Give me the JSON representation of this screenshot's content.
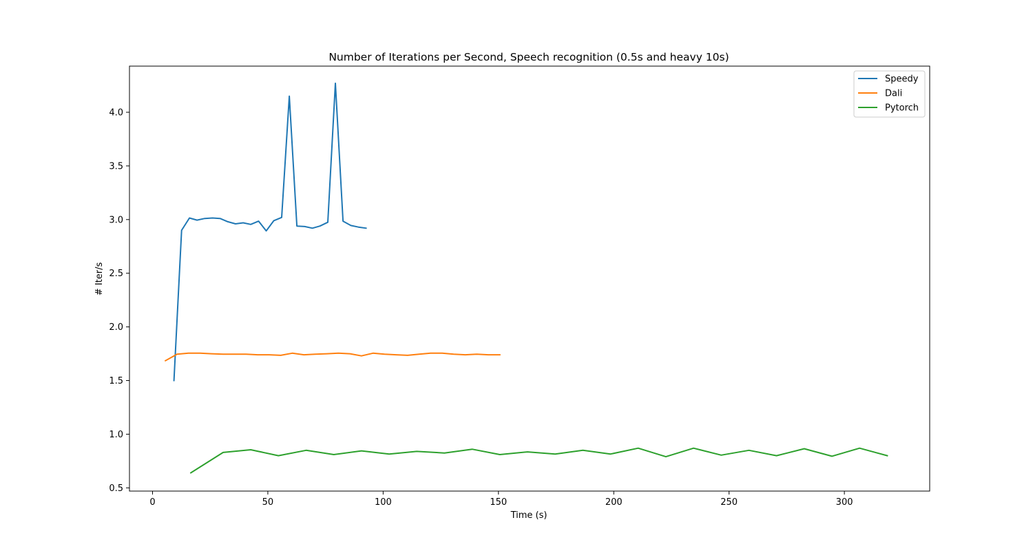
{
  "chart_data": {
    "type": "line",
    "title": "Number of Iterations per Second, Speech recognition (0.5s and heavy 10s)",
    "xlabel": "Time (s)",
    "ylabel": "# Iter/s",
    "xlim": [
      -10,
      337
    ],
    "ylim": [
      0.47,
      4.43
    ],
    "xticks": [
      0,
      50,
      100,
      150,
      200,
      250,
      300
    ],
    "yticks": [
      0.5,
      1.0,
      1.5,
      2.0,
      2.5,
      3.0,
      3.5,
      4.0
    ],
    "xtick_labels": [
      "0",
      "50",
      "100",
      "150",
      "200",
      "250",
      "300"
    ],
    "ytick_labels": [
      "0.5",
      "1.0",
      "1.5",
      "2.0",
      "2.5",
      "3.0",
      "3.5",
      "4.0"
    ],
    "grid": false,
    "legend_position": "top-right",
    "series": [
      {
        "name": "Speedy",
        "color": "#1f77b4",
        "x": [
          9.3,
          12.6,
          16.0,
          19.3,
          22.6,
          26.0,
          29.3,
          32.6,
          36.0,
          39.3,
          42.6,
          46.0,
          49.3,
          52.6,
          56.0,
          59.3,
          62.6,
          66.0,
          69.3,
          72.6,
          76.0,
          79.3,
          82.6,
          86.0,
          89.3,
          92.6
        ],
        "y": [
          1.5,
          2.9,
          3.015,
          2.995,
          3.01,
          3.015,
          3.01,
          2.98,
          2.96,
          2.97,
          2.955,
          2.985,
          2.895,
          2.99,
          3.02,
          4.15,
          2.94,
          2.935,
          2.92,
          2.94,
          2.975,
          4.27,
          2.985,
          2.945,
          2.93,
          2.92
        ]
      },
      {
        "name": "Dali",
        "color": "#ff7f0e",
        "x": [
          5.6,
          10.6,
          15.6,
          20.6,
          25.6,
          30.6,
          35.6,
          40.6,
          45.6,
          50.6,
          55.6,
          60.6,
          65.6,
          70.6,
          75.6,
          80.6,
          85.6,
          90.6,
          95.6,
          100.6,
          105.6,
          110.6,
          115.6,
          120.6,
          125.6,
          130.6,
          135.6,
          140.6,
          145.6,
          150.6
        ],
        "y": [
          1.685,
          1.745,
          1.755,
          1.755,
          1.75,
          1.745,
          1.745,
          1.745,
          1.74,
          1.74,
          1.735,
          1.755,
          1.74,
          1.745,
          1.75,
          1.755,
          1.75,
          1.73,
          1.755,
          1.745,
          1.74,
          1.735,
          1.745,
          1.755,
          1.755,
          1.745,
          1.74,
          1.745,
          1.74,
          1.74
        ]
      },
      {
        "name": "Pytorch",
        "color": "#2ca02c",
        "x": [
          16.6,
          30.6,
          42.6,
          54.6,
          66.6,
          78.6,
          90.6,
          102.6,
          114.6,
          126.6,
          138.6,
          150.6,
          162.6,
          174.6,
          186.6,
          198.6,
          210.6,
          222.6,
          234.6,
          246.6,
          258.6,
          270.6,
          282.6,
          294.6,
          306.6,
          318.6
        ],
        "y": [
          0.64,
          0.83,
          0.855,
          0.8,
          0.85,
          0.81,
          0.845,
          0.815,
          0.84,
          0.825,
          0.86,
          0.81,
          0.835,
          0.815,
          0.85,
          0.815,
          0.87,
          0.79,
          0.87,
          0.805,
          0.85,
          0.8,
          0.865,
          0.795,
          0.87,
          0.8
        ]
      }
    ]
  }
}
